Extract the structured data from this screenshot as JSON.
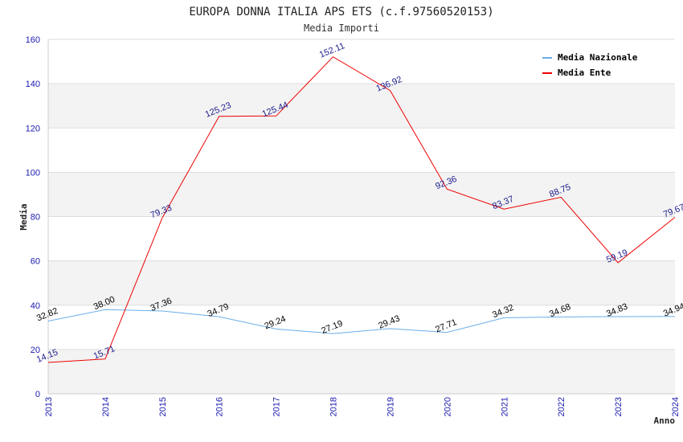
{
  "chart_data": {
    "type": "line",
    "title": "EUROPA DONNA ITALIA APS ETS (c.f.97560520153)",
    "subtitle": "Media Importi",
    "xlabel": "Anno",
    "ylabel": "Media",
    "x": [
      "2013",
      "2014",
      "2015",
      "2016",
      "2017",
      "2018",
      "2019",
      "2020",
      "2021",
      "2022",
      "2023",
      "2024"
    ],
    "ylim": [
      0,
      160
    ],
    "yticks": [
      "0",
      "20",
      "40",
      "60",
      "80",
      "100",
      "120",
      "140",
      "160"
    ],
    "grid": "horizontal bands",
    "legend_position": "top-right",
    "series": [
      {
        "name": "Media Nazionale",
        "color": "#6aaee8",
        "label_color": "#000000",
        "values": [
          32.82,
          38.0,
          37.36,
          34.79,
          29.24,
          27.19,
          29.43,
          27.71,
          34.32,
          34.68,
          34.83,
          34.94
        ],
        "labels": [
          "32.82",
          "38.00",
          "37.36",
          "34.79",
          "29.24",
          "27.19",
          "29.43",
          "27.71",
          "34.32",
          "34.68",
          "34.83",
          "34.94"
        ]
      },
      {
        "name": "Media Ente",
        "color": "#ee0000",
        "label_color": "#1a1a8c",
        "values": [
          14.15,
          15.71,
          79.33,
          125.23,
          125.44,
          152.11,
          136.92,
          92.36,
          83.37,
          88.75,
          59.19,
          79.67
        ],
        "labels": [
          "14.15",
          "15.71",
          "79.33",
          "125.23",
          "125.44",
          "152.11",
          "136.92",
          "92.36",
          "83.37",
          "88.75",
          "59.19",
          "79.67"
        ]
      }
    ]
  }
}
